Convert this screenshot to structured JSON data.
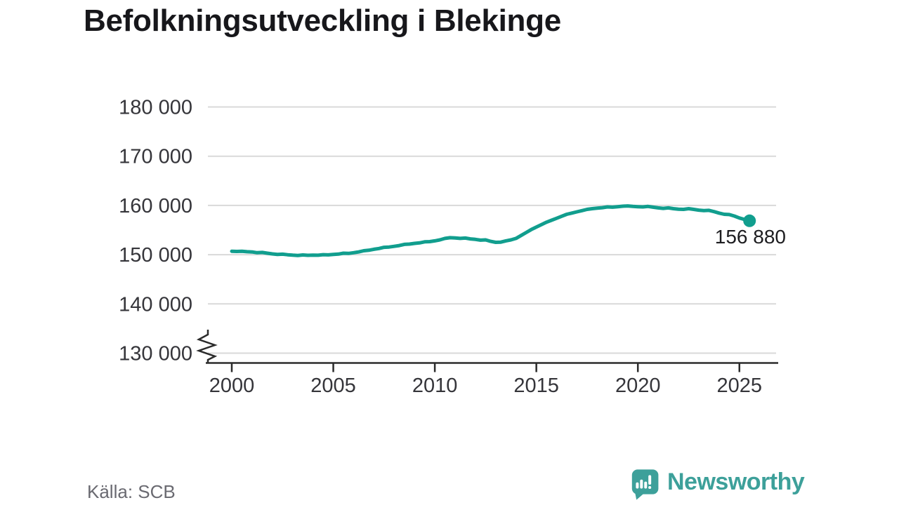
{
  "title": "Befolkningsutveckling i Blekinge",
  "source": "Källa: SCB",
  "logo": {
    "text": "Newsworthy",
    "icon": "newsworthy-speech-bubble-bar-chart-icon"
  },
  "colors": {
    "line": "#119e8e",
    "marker": "#119e8e",
    "logo_teal": "#3da09a",
    "grid": "#d9d9d9",
    "axis": "#2b2b2b",
    "tick_label": "#35353a",
    "title_text": "#17171b",
    "annotation_text": "#1d1d20",
    "source_text": "#6a6a71",
    "background": "#ffffff"
  },
  "chart_data": {
    "type": "line",
    "title": "Befolkningsutveckling i Blekinge",
    "xlabel": "",
    "ylabel": "",
    "grid": "horizontal",
    "legend": "none",
    "y_axis_break": true,
    "x_ticks": [
      2000,
      2005,
      2010,
      2015,
      2020,
      2025
    ],
    "x_tick_labels": [
      "2000",
      "2005",
      "2010",
      "2015",
      "2020",
      "2025"
    ],
    "y_ticks": [
      130000,
      140000,
      150000,
      160000,
      170000,
      180000
    ],
    "y_tick_labels": [
      "130 000",
      "140 000",
      "150 000",
      "160 000",
      "170 000",
      "180 000"
    ],
    "xlim": [
      1998.7,
      2026.9
    ],
    "ylim": [
      128000,
      182000
    ],
    "x_start": 2000,
    "x_step_years": 0.25,
    "x_end": 2025.5,
    "values": [
      150700,
      150650,
      150700,
      150600,
      150550,
      150400,
      150450,
      150300,
      150150,
      150050,
      150100,
      149980,
      149900,
      149850,
      149950,
      149870,
      149900,
      149880,
      150000,
      149960,
      150050,
      150120,
      150300,
      150250,
      150400,
      150550,
      150800,
      150900,
      151100,
      151250,
      151500,
      151550,
      151700,
      151850,
      152100,
      152150,
      152300,
      152400,
      152600,
      152650,
      152800,
      153000,
      153300,
      153450,
      153400,
      153300,
      153380,
      153200,
      153100,
      152950,
      153000,
      152700,
      152500,
      152550,
      152800,
      153000,
      153300,
      153900,
      154500,
      155100,
      155600,
      156100,
      156600,
      157000,
      157400,
      157800,
      158200,
      158450,
      158700,
      158950,
      159200,
      159350,
      159450,
      159550,
      159700,
      159650,
      159750,
      159850,
      159900,
      159800,
      159750,
      159700,
      159800,
      159650,
      159500,
      159400,
      159500,
      159350,
      159250,
      159200,
      159350,
      159200,
      159050,
      158950,
      159000,
      158750,
      158450,
      158200,
      158150,
      157850,
      157450,
      157150,
      156880
    ],
    "end_point": {
      "value": 156880,
      "label": "156 880"
    }
  }
}
